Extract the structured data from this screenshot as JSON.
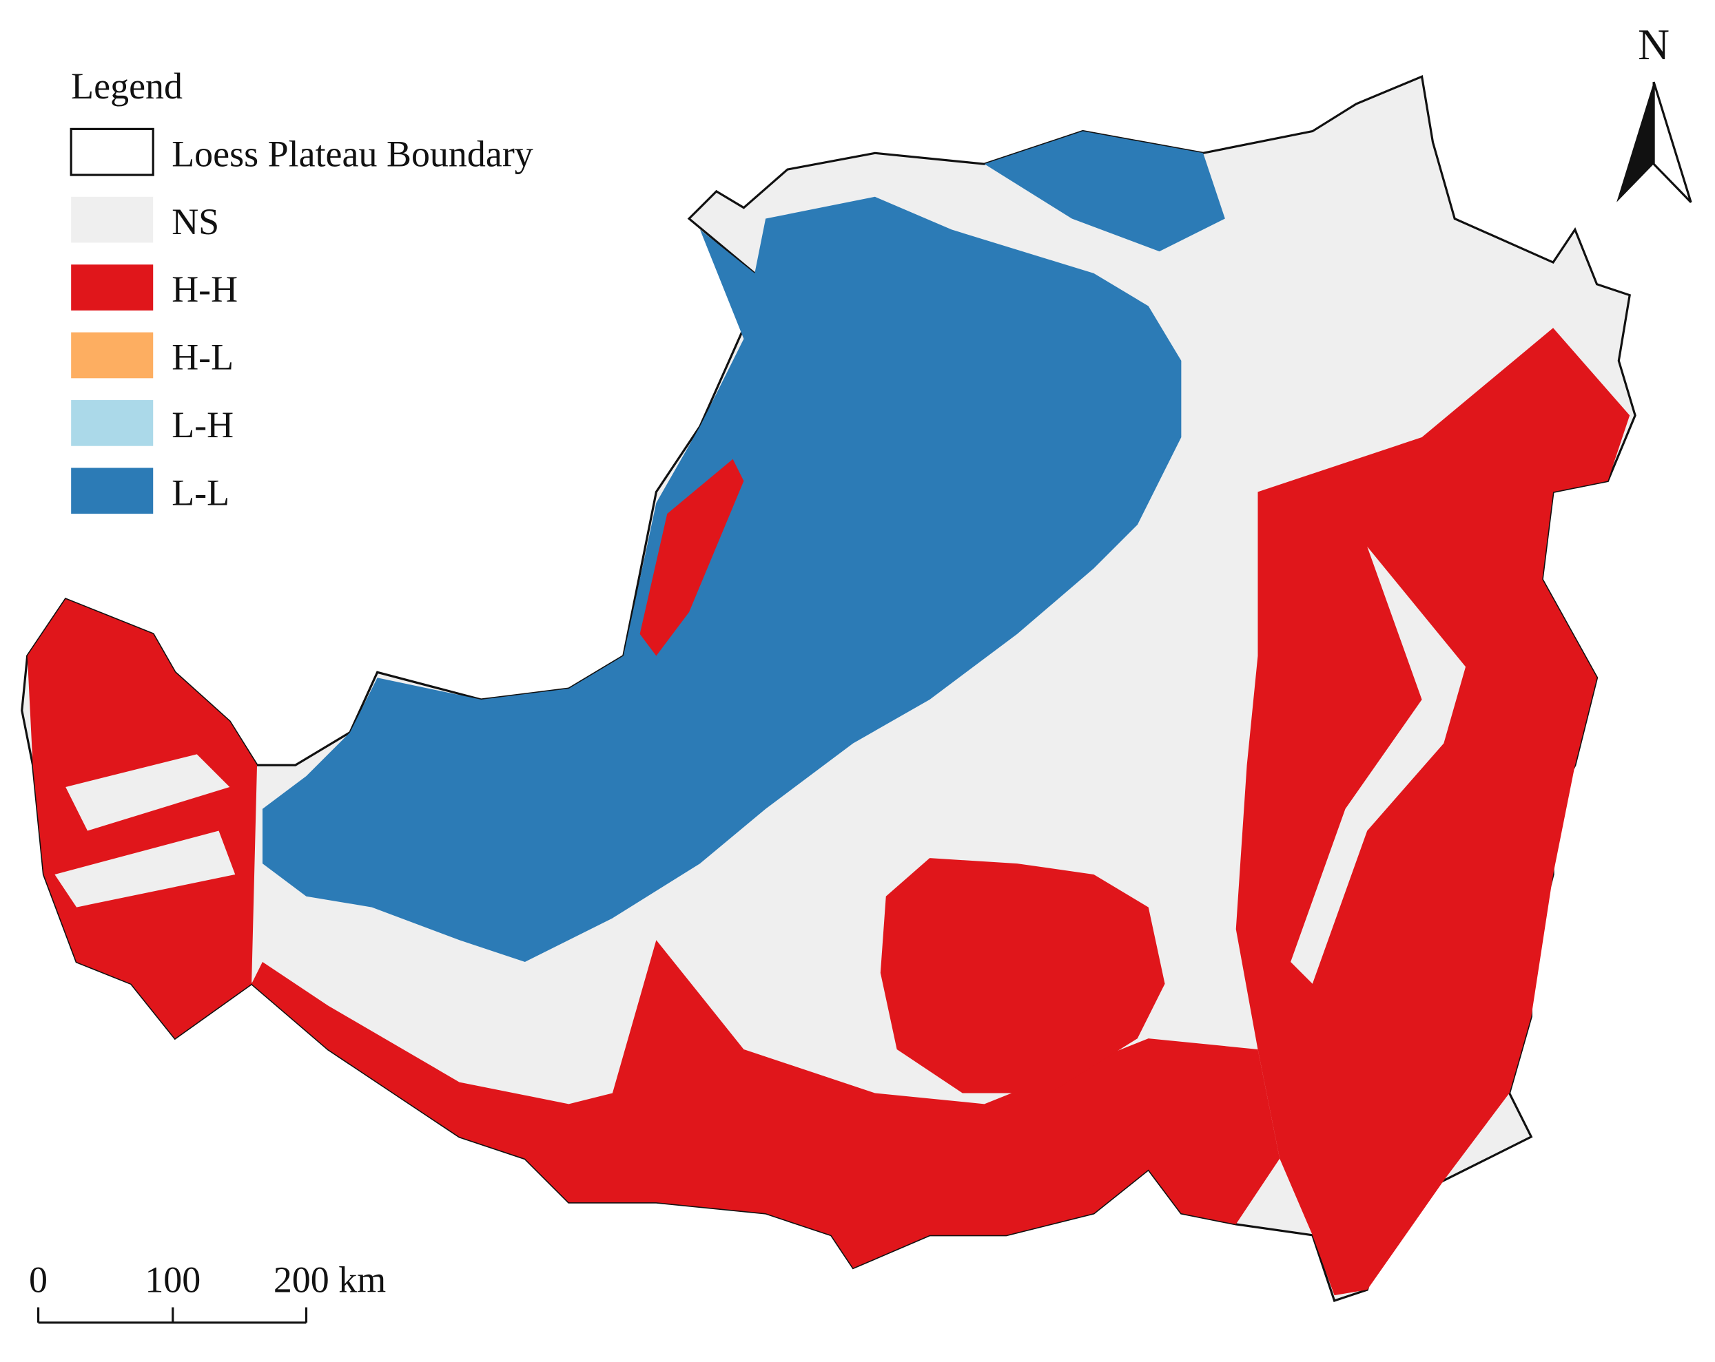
{
  "legend": {
    "title": "Legend",
    "items": [
      {
        "label": "Loess Plateau Boundary",
        "color": "#ffffff",
        "stroke": "#111111"
      },
      {
        "label": "NS",
        "color": "#efefef"
      },
      {
        "label": "H-H",
        "color": "#e0161b"
      },
      {
        "label": "H-L",
        "color": "#fdae61"
      },
      {
        "label": "L-H",
        "color": "#abd9e9"
      },
      {
        "label": "L-L",
        "color": "#2c7bb6"
      }
    ]
  },
  "north_arrow": {
    "label": "N"
  },
  "scale_bar": {
    "labels": [
      "0",
      "100",
      "200 km"
    ]
  }
}
